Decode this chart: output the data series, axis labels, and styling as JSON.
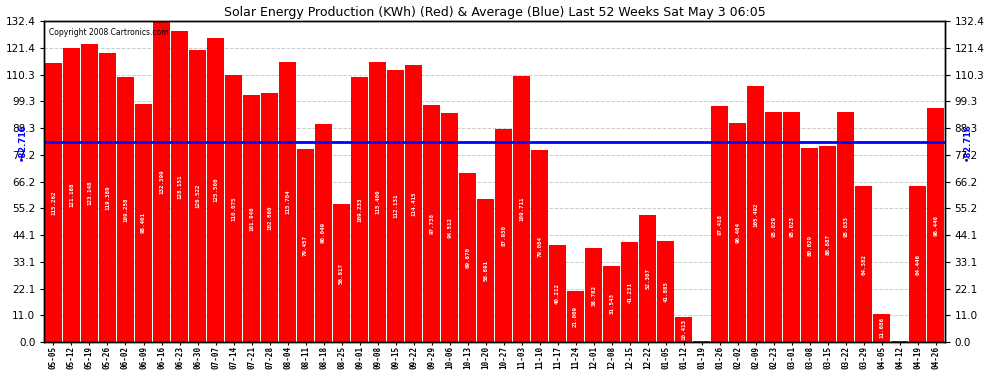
{
  "title": "Solar Energy Production (KWh) (Red) & Average (Blue) Last 52 Weeks Sat May 3 06:05",
  "copyright": "Copyright 2008 Cartronics.com",
  "average": 82.716,
  "ylim": [
    0,
    132.4
  ],
  "yticks": [
    0.0,
    11.0,
    22.1,
    33.1,
    44.1,
    55.2,
    66.2,
    77.2,
    88.3,
    99.3,
    110.3,
    121.4,
    132.4
  ],
  "bar_color": "#FF0000",
  "avg_line_color": "#0000FF",
  "background_color": "#FFFFFF",
  "grid_color": "#BBBBBB",
  "categories": [
    "05-05",
    "05-12",
    "05-19",
    "05-26",
    "06-02",
    "06-09",
    "06-16",
    "06-23",
    "06-30",
    "07-07",
    "07-14",
    "07-21",
    "07-28",
    "08-04",
    "08-11",
    "08-18",
    "08-25",
    "09-01",
    "09-08",
    "09-15",
    "09-22",
    "09-29",
    "10-06",
    "10-13",
    "10-20",
    "10-27",
    "11-03",
    "11-10",
    "11-17",
    "11-24",
    "12-01",
    "12-08",
    "12-15",
    "12-22",
    "01-05",
    "01-12",
    "01-19",
    "01-26",
    "02-02",
    "02-09",
    "02-23",
    "03-01",
    "03-08",
    "03-15",
    "03-22",
    "03-29",
    "04-05",
    "04-12",
    "04-19",
    "04-26"
  ],
  "values": [
    115.262,
    121.168,
    123.148,
    119.389,
    109.258,
    98.401,
    132.399,
    128.151,
    120.522,
    125.5,
    110.075,
    101.946,
    102.66,
    115.704,
    79.457,
    90.049,
    56.817,
    109.233,
    115.4,
    112.131,
    114.415,
    97.738,
    94.512,
    69.67,
    58.891,
    87.93,
    109.711,
    79.084,
    40.212,
    21.009,
    38.782,
    31.543,
    41.231,
    52.307,
    41.885,
    10.413,
    0.445,
    97.418,
    90.404,
    105.492,
    95.029,
    95.023,
    80.029,
    80.887,
    95.033,
    64.382,
    11.686,
    0.445,
    64.446,
    96.446
  ]
}
